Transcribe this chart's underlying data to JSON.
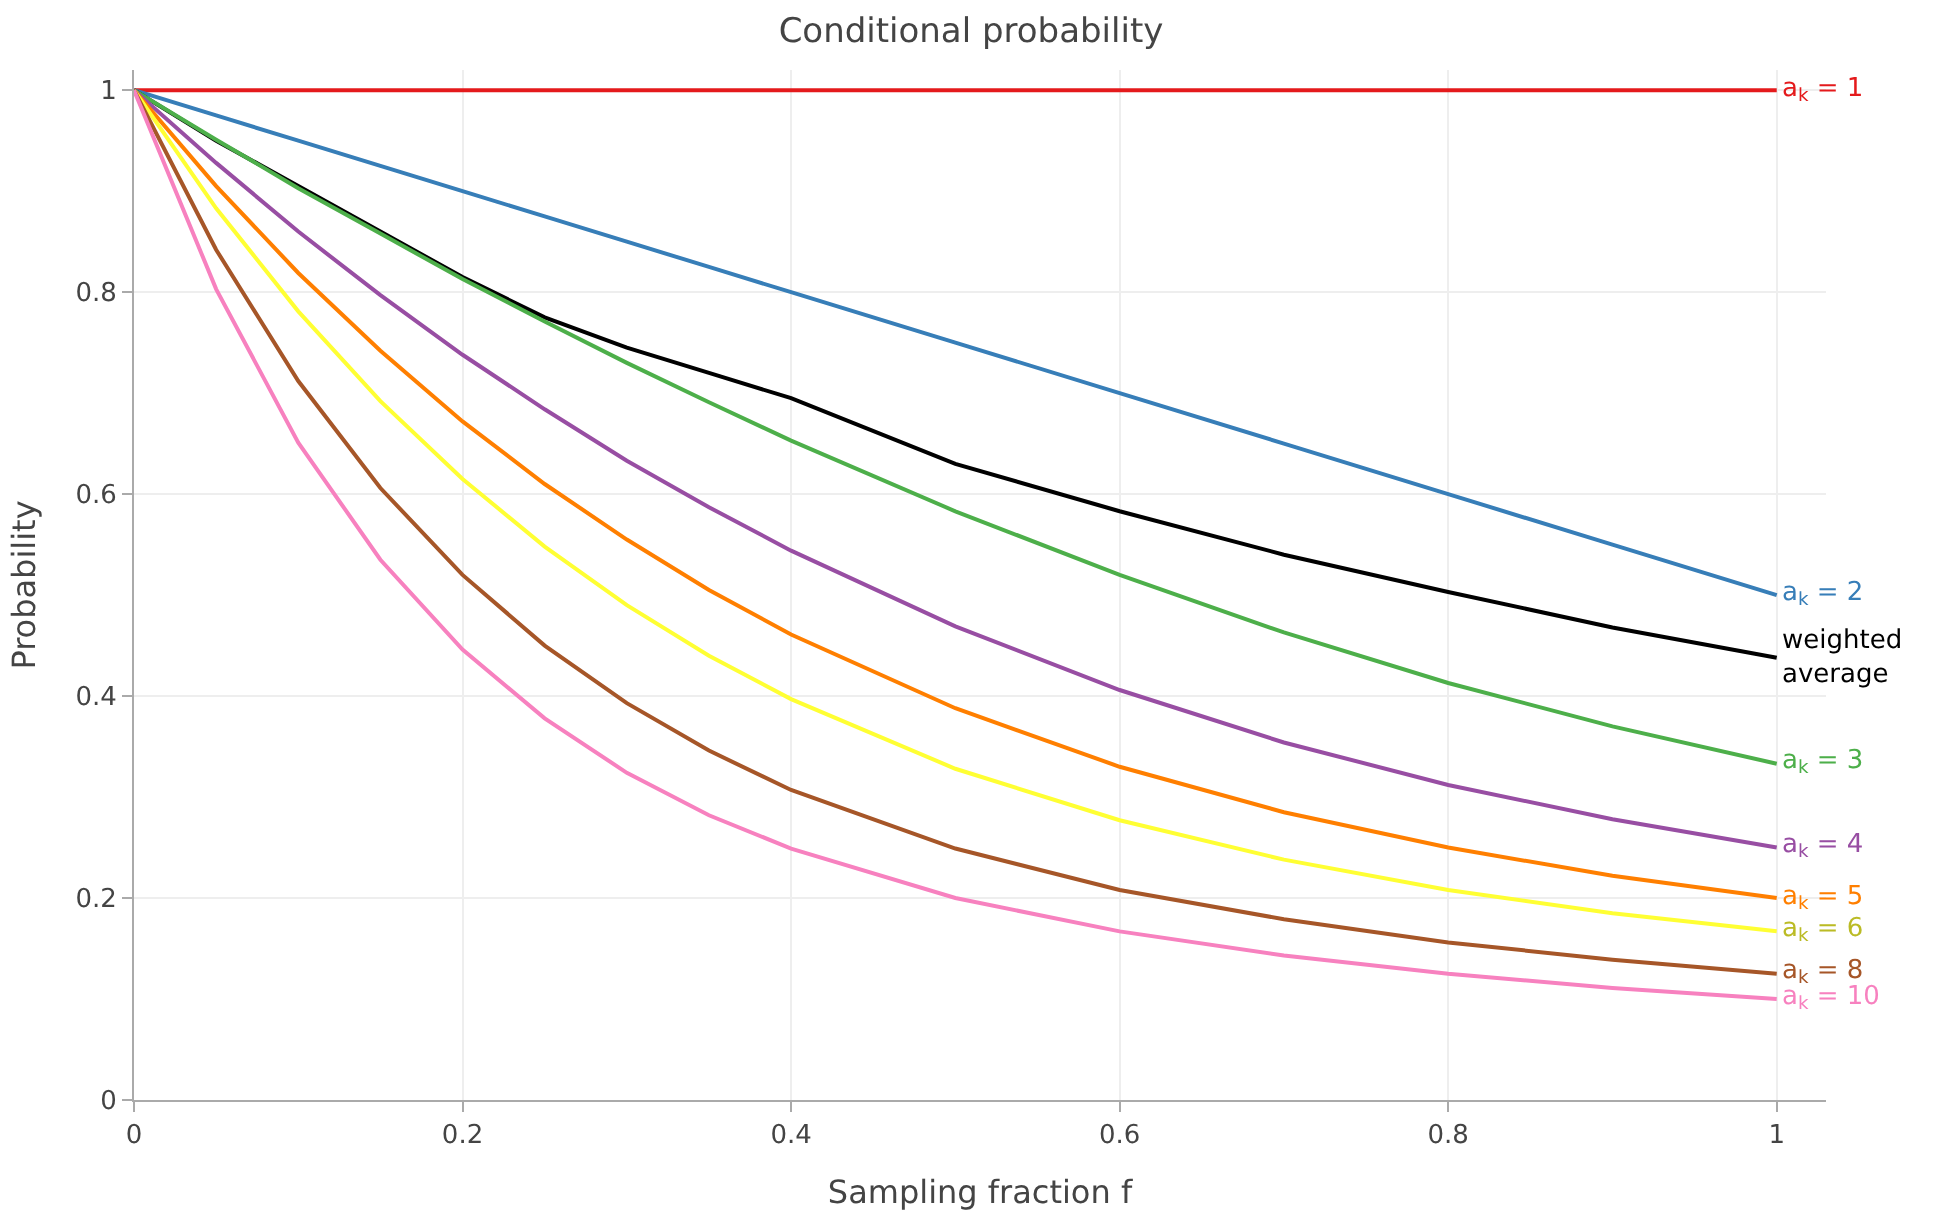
{
  "chart_data": {
    "type": "line",
    "title": "Conditional probability",
    "xlabel": "Sampling fraction f",
    "ylabel": "Probability",
    "x": [
      0,
      0.05,
      0.1,
      0.15,
      0.2,
      0.25,
      0.3,
      0.35,
      0.4,
      0.5,
      0.6,
      0.7,
      0.8,
      0.9,
      1
    ],
    "series": [
      {
        "name": "a$_{k}$ = 1",
        "color": "#e41a1c",
        "values": [
          1,
          1,
          1,
          1,
          1,
          1,
          1,
          1,
          1,
          1,
          1,
          1,
          1,
          1,
          1
        ]
      },
      {
        "name": "a$_{k}$ = 2",
        "color": "#377eb8",
        "values": [
          1,
          0.975,
          0.95,
          0.925,
          0.9,
          0.875,
          0.85,
          0.825,
          0.8,
          0.75,
          0.7,
          0.65,
          0.6,
          0.55,
          0.5
        ]
      },
      {
        "name": "weighted average",
        "color": "#000000",
        "values": [
          1,
          0.95,
          0.905,
          0.86,
          0.815,
          0.775,
          0.745,
          0.72,
          0.695,
          0.63,
          0.583,
          0.54,
          0.503,
          0.468,
          0.438
        ]
      },
      {
        "name": "a$_{k}$ = 3",
        "color": "#4daf4a",
        "values": [
          1,
          0.951,
          0.903,
          0.858,
          0.813,
          0.771,
          0.73,
          0.691,
          0.653,
          0.583,
          0.52,
          0.463,
          0.413,
          0.37,
          0.333
        ]
      },
      {
        "name": "a$_{k}$ = 4",
        "color": "#984ea3",
        "values": [
          1,
          0.928,
          0.86,
          0.797,
          0.738,
          0.684,
          0.633,
          0.587,
          0.544,
          0.469,
          0.406,
          0.354,
          0.312,
          0.278,
          0.25
        ]
      },
      {
        "name": "a$_{k}$ = 5",
        "color": "#ff7f00",
        "values": [
          1,
          0.905,
          0.819,
          0.742,
          0.672,
          0.61,
          0.555,
          0.505,
          0.461,
          0.388,
          0.33,
          0.285,
          0.25,
          0.222,
          0.2
        ]
      },
      {
        "name": "a$_{k}$ = 6",
        "color": "#ffff33",
        "values": [
          1,
          0.883,
          0.781,
          0.692,
          0.615,
          0.548,
          0.49,
          0.44,
          0.397,
          0.328,
          0.277,
          0.238,
          0.208,
          0.185,
          0.167
        ]
      },
      {
        "name": "a$_{k}$ = 8",
        "color": "#a65628",
        "values": [
          1,
          0.842,
          0.712,
          0.606,
          0.52,
          0.45,
          0.393,
          0.346,
          0.307,
          0.249,
          0.208,
          0.179,
          0.156,
          0.139,
          0.125
        ]
      },
      {
        "name": "a$_{k}$ = 10",
        "color": "#f781bf",
        "values": [
          1,
          0.803,
          0.651,
          0.535,
          0.446,
          0.378,
          0.324,
          0.282,
          0.249,
          0.2,
          0.167,
          0.143,
          0.125,
          0.111,
          0.1
        ]
      }
    ],
    "xlim": [
      0,
      1.03
    ],
    "ylim": [
      0,
      1.02
    ],
    "xticks": [
      0,
      0.2,
      0.4,
      0.6,
      0.8,
      1
    ],
    "yticks": [
      0,
      0.2,
      0.4,
      0.6,
      0.8,
      1
    ],
    "grid": true,
    "legend": false,
    "marker": "none",
    "line_style": "solid"
  }
}
